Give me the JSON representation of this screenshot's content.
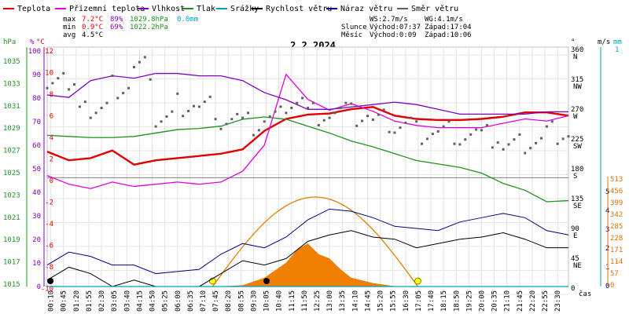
{
  "legend": [
    {
      "label": "Teplota",
      "color": "#e00000"
    },
    {
      "label": "Přízemní teplota",
      "color": "#e000e0"
    },
    {
      "label": "Vlhkost",
      "color": "#8000c0"
    },
    {
      "label": "Tlak",
      "color": "#209020"
    },
    {
      "label": "Srážky",
      "color": "#00a0c0"
    },
    {
      "label": "Rychlost větru",
      "color": "#000000"
    },
    {
      "label": "Náraz větru",
      "color": "#000080"
    },
    {
      "label": "Směr větru",
      "color": "#606060"
    }
  ],
  "stats": {
    "max_label": "max",
    "max_temp": "7.2°C",
    "max_hum": "89%",
    "max_press": "1029.8hPa",
    "max_rain": "0.0mm",
    "min_label": "min",
    "min_temp": "0.9°C",
    "min_hum": "69%",
    "min_press": "1022.2hPa",
    "avg_label": "avg",
    "avg_temp": "4.5°C"
  },
  "wind_info": {
    "ws": "WS:2.7m/s",
    "wg": "WG:4.1m/s"
  },
  "sun_info": {
    "label": "Slunce",
    "rise": "Východ:07:37",
    "set": "Západ:17:04"
  },
  "moon_info": {
    "label": "Měsíc",
    "rise": "Východ:0:09",
    "set": "Západ:10:06"
  },
  "date_title": "2.2.2024",
  "axes": {
    "hpa_label": "hPa",
    "pct_label": "%",
    "degc_label": "°C",
    "deg_label": "°",
    "ms_label": "m/s",
    "mm_label": "mm",
    "time_label": "čas",
    "hpa_ticks": [
      "1035",
      "1033",
      "1031",
      "1029",
      "1027",
      "1025",
      "1023",
      "1021",
      "1019",
      "1017",
      "1015"
    ],
    "pct_ticks": [
      "100",
      "90",
      "80",
      "70",
      "60",
      "50",
      "40",
      "30",
      "20",
      "10",
      "0"
    ],
    "temp_ticks": [
      "12",
      "10",
      "8",
      "6",
      "4",
      "2",
      "0",
      "-2",
      "-4",
      "-6",
      "-8",
      "-10"
    ],
    "dir_ticks": [
      "360",
      "315",
      "270",
      "225",
      "180",
      "135",
      "90",
      "45",
      "0"
    ],
    "dir_letters": [
      "N",
      "NW",
      "W",
      "SW",
      "S",
      "SE",
      "E",
      "NE"
    ],
    "ms_ticks": [
      "5",
      "4",
      "3",
      "2",
      "1",
      "0"
    ],
    "rad_ticks": [
      "513",
      "456",
      "399",
      "342",
      "285",
      "228",
      "171",
      "114",
      "57",
      "0"
    ],
    "mm_ticks": [
      "1"
    ],
    "time_ticks": [
      "00:10",
      "00:45",
      "01:20",
      "01:55",
      "02:30",
      "03:05",
      "03:40",
      "04:15",
      "04:50",
      "05:25",
      "06:00",
      "06:35",
      "07:10",
      "07:45",
      "08:20",
      "08:55",
      "09:30",
      "10:05",
      "10:40",
      "11:15",
      "11:50",
      "12:25",
      "13:00",
      "13:35",
      "14:10",
      "14:45",
      "15:20",
      "15:55",
      "16:30",
      "17:05",
      "17:40",
      "18:15",
      "18:50",
      "19:25",
      "20:00",
      "20:35",
      "21:10",
      "21:45",
      "22:20",
      "22:55",
      "23:30"
    ]
  },
  "chart_data": {
    "type": "line",
    "title": "2.2.2024",
    "x_unit": "hour",
    "x": [
      0,
      1,
      2,
      3,
      4,
      5,
      6,
      7,
      8,
      9,
      10,
      11,
      12,
      13,
      14,
      15,
      16,
      17,
      18,
      19,
      20,
      21,
      22,
      23,
      24
    ],
    "series": [
      {
        "name": "Teplota",
        "unit": "°C",
        "color": "#e00000",
        "values": [
          2.4,
          1.6,
          1.8,
          2.5,
          1.2,
          1.6,
          1.8,
          2.0,
          2.2,
          2.6,
          4.3,
          5.4,
          5.8,
          5.9,
          6.3,
          6.5,
          5.7,
          5.4,
          5.3,
          5.3,
          5.4,
          5.6,
          6.0,
          6.0,
          5.7
        ]
      },
      {
        "name": "Přízemní teplota",
        "unit": "°C",
        "color": "#e000e0",
        "values": [
          0.2,
          -0.6,
          -1.0,
          -0.4,
          -0.8,
          -0.6,
          -0.4,
          -0.6,
          -0.4,
          0.6,
          3.0,
          9.5,
          7.2,
          6.2,
          6.8,
          6.1,
          5.2,
          4.8,
          4.6,
          4.6,
          4.6,
          5.0,
          5.4,
          5.2,
          5.7
        ]
      },
      {
        "name": "Vlhkost",
        "unit": "%",
        "color": "#8000c0",
        "values": [
          80,
          79,
          86,
          88,
          87,
          89,
          89,
          88,
          88,
          86,
          81,
          78,
          74,
          74,
          75,
          76,
          77,
          76,
          74,
          72,
          72,
          72,
          72,
          73,
          73
        ]
      },
      {
        "name": "Tlak",
        "unit": "hPa",
        "color": "#209020",
        "values": [
          1028.2,
          1028.1,
          1028.0,
          1028.0,
          1028.1,
          1028.4,
          1028.7,
          1028.8,
          1029.0,
          1029.6,
          1029.8,
          1029.6,
          1029.0,
          1028.4,
          1027.7,
          1027.2,
          1026.6,
          1026.0,
          1025.7,
          1025.4,
          1024.9,
          1024.0,
          1023.4,
          1022.4,
          1022.5
        ]
      },
      {
        "name": "Rychlost větru",
        "unit": "m/s",
        "color": "#000000",
        "values": [
          0.3,
          0.9,
          0.6,
          0.0,
          0.3,
          0.0,
          0.0,
          0.0,
          0.6,
          1.2,
          1.0,
          1.3,
          2.1,
          2.4,
          2.6,
          2.3,
          2.2,
          1.8,
          2.0,
          2.2,
          2.3,
          2.5,
          2.2,
          1.8,
          1.8
        ]
      },
      {
        "name": "Náraz větru",
        "unit": "m/s",
        "color": "#000080",
        "values": [
          1.0,
          1.6,
          1.4,
          1.0,
          1.0,
          0.6,
          0.7,
          0.8,
          1.5,
          2.0,
          1.8,
          2.3,
          3.1,
          3.6,
          3.5,
          3.2,
          2.8,
          2.7,
          2.6,
          3.0,
          3.2,
          3.4,
          3.2,
          2.6,
          2.4
        ]
      },
      {
        "name": "Směr větru",
        "unit": "°",
        "color": "#606060",
        "values": [
          320,
          290,
          260,
          300,
          330,
          250,
          275,
          270,
          250,
          240,
          250,
          280,
          260,
          260,
          255,
          245,
          240,
          230,
          230,
          225,
          220,
          205,
          215,
          230,
          230
        ]
      },
      {
        "name": "Srážky",
        "unit": "mm",
        "color": "#00a0c0",
        "values": [
          0,
          0,
          0,
          0,
          0,
          0,
          0,
          0,
          0,
          0,
          0,
          0,
          0,
          0,
          0,
          0,
          0,
          0,
          0,
          0,
          0,
          0,
          0,
          0,
          0
        ]
      }
    ],
    "solar_radiation": {
      "unit": "W/m²",
      "x": [
        8,
        9,
        10,
        11,
        11.5,
        12,
        12.5,
        13,
        13.5,
        14,
        15,
        16
      ],
      "values": [
        0,
        5,
        40,
        110,
        170,
        200,
        150,
        130,
        80,
        40,
        15,
        0
      ]
    },
    "sun_curve": {
      "rise": "07:37",
      "set": "17:04",
      "peak": 0.95
    },
    "grid": true
  }
}
